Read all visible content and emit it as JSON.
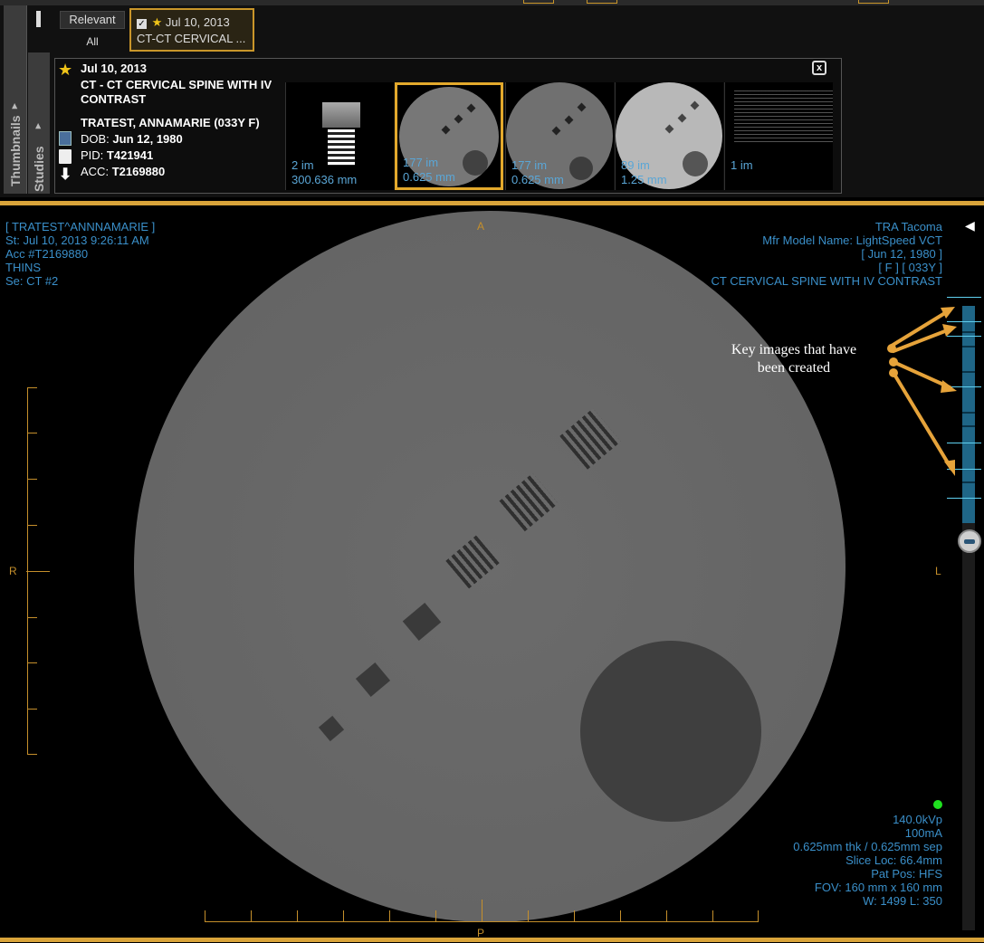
{
  "study_panel": {
    "thumbnails_tab": "Thumbnails",
    "studies_tab": "Studies",
    "filter_relevant": "Relevant",
    "filter_all": "All",
    "selected_study": {
      "check": "✓",
      "star": "★",
      "date": "Jul 10, 2013",
      "desc": "CT-CT CERVICAL ..."
    },
    "close": "x",
    "study": {
      "star": "★",
      "date": "Jul 10, 2013",
      "desc": "CT - CT CERVICAL SPINE WITH IV CONTRAST",
      "patient": "TRATEST, ANNAMARIE (033Y F)",
      "dob_label": "DOB:",
      "dob": "Jun 12, 1980",
      "pid_label": "PID:",
      "pid": "T421941",
      "acc_label": "ACC:",
      "acc": "T2169880"
    },
    "series": [
      {
        "count": "2 im",
        "thickness": "300.636 mm"
      },
      {
        "count": "177 im",
        "thickness": "0.625 mm",
        "selected": true
      },
      {
        "count": "177 im",
        "thickness": "0.625 mm"
      },
      {
        "count": "89 im",
        "thickness": "1.25 mm"
      },
      {
        "count": "1 im",
        "thickness": ""
      }
    ]
  },
  "viewer": {
    "top_left": [
      "[ TRATEST^ANNNAMARIE ]",
      "St: Jul 10, 2013 9:26:11 AM",
      "Acc #T2169880",
      "THINS",
      "Se: CT #2"
    ],
    "top_right": [
      "TRA Tacoma",
      "Mfr Model Name: LightSpeed VCT",
      "[ Jun 12, 1980 ]",
      "[ F ] [ 033Y ]",
      "CT CERVICAL SPINE WITH IV CONTRAST"
    ],
    "bottom_right": [
      "140.0kVp",
      "100mA",
      "0.625mm thk / 0.625mm sep",
      "Slice Loc: 66.4mm",
      "Pat Pos: HFS",
      "FOV: 160 mm x 160 mm",
      "W: 1499 L: 350"
    ],
    "orientation": {
      "top": "A",
      "bottom": "P",
      "left": "R",
      "right": "L"
    },
    "annotation": "Key images that have been created",
    "colors": {
      "overlay_text": "#3a8fc9",
      "accent": "#d9a43a",
      "key_strip": "#1f6687"
    }
  }
}
